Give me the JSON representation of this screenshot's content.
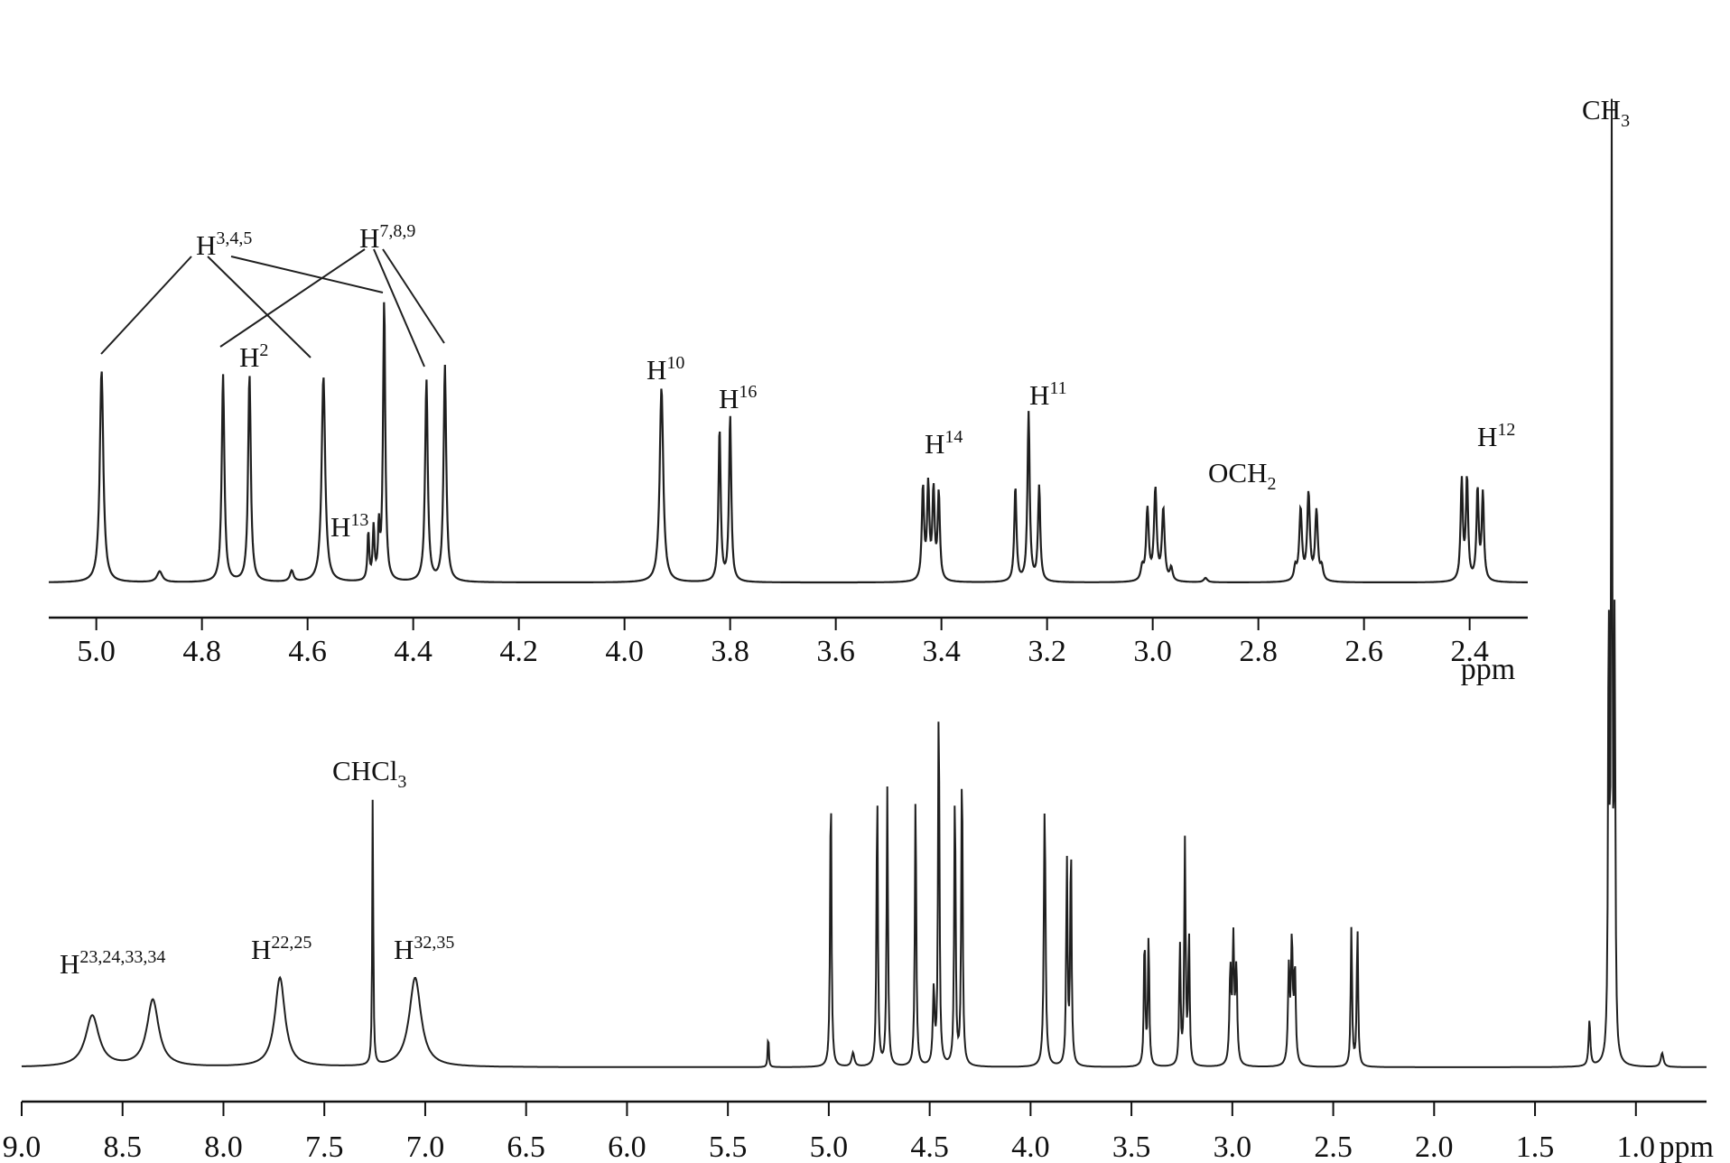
{
  "colors": {
    "trace": "#1f1f1f",
    "axis": "#111111",
    "background": "#ffffff"
  },
  "chart_data": [
    {
      "id": "inset",
      "type": "line",
      "x_unit": "ppm",
      "xlim": [
        5.09,
        2.29
      ],
      "ticks": [
        "5.0",
        "4.8",
        "4.6",
        "4.4",
        "4.2",
        "4.0",
        "3.8",
        "3.6",
        "3.4",
        "3.2",
        "3.0",
        "2.8",
        "2.6",
        "2.4"
      ],
      "xlabel": "ppm",
      "y_unit": "relative intensity",
      "ylim": [
        0,
        1
      ],
      "baseline": 0.02,
      "peaks": [
        {
          "x": 4.99,
          "h": 0.98,
          "w": 0.004
        },
        {
          "x": 4.88,
          "h": 0.05,
          "w": 0.006
        },
        {
          "x": 4.76,
          "h": 0.96,
          "w": 0.003
        },
        {
          "x": 4.71,
          "h": 0.96,
          "w": 0.003
        },
        {
          "x": 4.63,
          "h": 0.05,
          "w": 0.004
        },
        {
          "x": 4.57,
          "h": 0.95,
          "w": 0.004
        },
        {
          "x": 4.485,
          "h": 0.22,
          "w": 0.002
        },
        {
          "x": 4.475,
          "h": 0.24,
          "w": 0.002
        },
        {
          "x": 4.465,
          "h": 0.23,
          "w": 0.002
        },
        {
          "x": 4.455,
          "h": 1.3,
          "w": 0.0025
        },
        {
          "x": 4.375,
          "h": 0.93,
          "w": 0.003
        },
        {
          "x": 4.34,
          "h": 1.0,
          "w": 0.003
        },
        {
          "x": 3.93,
          "h": 0.9,
          "w": 0.004
        },
        {
          "x": 3.82,
          "h": 0.71,
          "w": 0.0025
        },
        {
          "x": 3.8,
          "h": 0.77,
          "w": 0.0025
        },
        {
          "x": 3.435,
          "h": 0.43,
          "w": 0.0025
        },
        {
          "x": 3.425,
          "h": 0.43,
          "w": 0.0025
        },
        {
          "x": 3.415,
          "h": 0.41,
          "w": 0.0025
        },
        {
          "x": 3.405,
          "h": 0.4,
          "w": 0.0025
        },
        {
          "x": 3.26,
          "h": 0.44,
          "w": 0.0025
        },
        {
          "x": 3.235,
          "h": 0.78,
          "w": 0.0025
        },
        {
          "x": 3.215,
          "h": 0.44,
          "w": 0.0025
        },
        {
          "x": 3.02,
          "h": 0.06,
          "w": 0.003
        },
        {
          "x": 3.01,
          "h": 0.33,
          "w": 0.003
        },
        {
          "x": 2.995,
          "h": 0.42,
          "w": 0.003
        },
        {
          "x": 2.98,
          "h": 0.33,
          "w": 0.003
        },
        {
          "x": 2.965,
          "h": 0.06,
          "w": 0.003
        },
        {
          "x": 2.9,
          "h": 0.02,
          "w": 0.004
        },
        {
          "x": 2.73,
          "h": 0.06,
          "w": 0.003
        },
        {
          "x": 2.72,
          "h": 0.33,
          "w": 0.003
        },
        {
          "x": 2.705,
          "h": 0.4,
          "w": 0.003
        },
        {
          "x": 2.69,
          "h": 0.32,
          "w": 0.003
        },
        {
          "x": 2.68,
          "h": 0.06,
          "w": 0.003
        },
        {
          "x": 2.415,
          "h": 0.46,
          "w": 0.0025
        },
        {
          "x": 2.405,
          "h": 0.47,
          "w": 0.0025
        },
        {
          "x": 2.385,
          "h": 0.42,
          "w": 0.0025
        },
        {
          "x": 2.375,
          "h": 0.4,
          "w": 0.0025
        }
      ],
      "annotations": [
        {
          "id": "h345",
          "label": "H",
          "sup": "3,4,5",
          "sub": ""
        },
        {
          "id": "h789",
          "label": "H",
          "sup": "7,8,9",
          "sub": ""
        },
        {
          "id": "h2",
          "label": "H",
          "sup": "2",
          "sub": ""
        },
        {
          "id": "h13",
          "label": "H",
          "sup": "13",
          "sub": ""
        },
        {
          "id": "h10",
          "label": "H",
          "sup": "10",
          "sub": ""
        },
        {
          "id": "h16",
          "label": "H",
          "sup": "16",
          "sub": ""
        },
        {
          "id": "h14",
          "label": "H",
          "sup": "14",
          "sub": ""
        },
        {
          "id": "h11",
          "label": "H",
          "sup": "11",
          "sub": ""
        },
        {
          "id": "och2",
          "label": "OCH",
          "sup": "",
          "sub": "2"
        },
        {
          "id": "h12",
          "label": "H",
          "sup": "12",
          "sub": ""
        }
      ]
    },
    {
      "id": "main",
      "type": "line",
      "x_unit": "ppm",
      "xlim": [
        9.0,
        0.65
      ],
      "ticks": [
        "9.0",
        "8.5",
        "8.0",
        "7.5",
        "7.0",
        "6.5",
        "6.0",
        "5.5",
        "5.0",
        "4.5",
        "4.0",
        "3.5",
        "3.0",
        "2.5",
        "2.0",
        "1.5",
        "1.0"
      ],
      "xlabel": "ppm",
      "y_unit": "relative intensity",
      "ylim": [
        0,
        1
      ],
      "baseline": 0.0,
      "peaks": [
        {
          "x": 8.65,
          "h": 0.055,
          "w": 0.04
        },
        {
          "x": 8.35,
          "h": 0.072,
          "w": 0.035
        },
        {
          "x": 7.72,
          "h": 0.096,
          "w": 0.03
        },
        {
          "x": 7.26,
          "h": 0.29,
          "w": 0.003
        },
        {
          "x": 7.05,
          "h": 0.096,
          "w": 0.035
        },
        {
          "x": 5.3,
          "h": 0.036,
          "w": 0.003
        },
        {
          "x": 4.99,
          "h": 0.31,
          "w": 0.004
        },
        {
          "x": 4.88,
          "h": 0.015,
          "w": 0.008
        },
        {
          "x": 4.76,
          "h": 0.3,
          "w": 0.004
        },
        {
          "x": 4.71,
          "h": 0.3,
          "w": 0.004
        },
        {
          "x": 4.57,
          "h": 0.3,
          "w": 0.004
        },
        {
          "x": 4.48,
          "h": 0.08,
          "w": 0.005
        },
        {
          "x": 4.455,
          "h": 0.4,
          "w": 0.004
        },
        {
          "x": 4.375,
          "h": 0.3,
          "w": 0.004
        },
        {
          "x": 4.34,
          "h": 0.33,
          "w": 0.004
        },
        {
          "x": 3.93,
          "h": 0.28,
          "w": 0.005
        },
        {
          "x": 3.82,
          "h": 0.22,
          "w": 0.004
        },
        {
          "x": 3.8,
          "h": 0.24,
          "w": 0.004
        },
        {
          "x": 3.435,
          "h": 0.14,
          "w": 0.004
        },
        {
          "x": 3.415,
          "h": 0.14,
          "w": 0.004
        },
        {
          "x": 3.26,
          "h": 0.13,
          "w": 0.004
        },
        {
          "x": 3.235,
          "h": 0.24,
          "w": 0.004
        },
        {
          "x": 3.215,
          "h": 0.14,
          "w": 0.004
        },
        {
          "x": 3.01,
          "h": 0.1,
          "w": 0.005
        },
        {
          "x": 2.995,
          "h": 0.13,
          "w": 0.005
        },
        {
          "x": 2.98,
          "h": 0.1,
          "w": 0.005
        },
        {
          "x": 2.72,
          "h": 0.1,
          "w": 0.005
        },
        {
          "x": 2.705,
          "h": 0.13,
          "w": 0.005
        },
        {
          "x": 2.69,
          "h": 0.1,
          "w": 0.005
        },
        {
          "x": 2.41,
          "h": 0.15,
          "w": 0.004
        },
        {
          "x": 2.38,
          "h": 0.15,
          "w": 0.004
        },
        {
          "x": 1.23,
          "h": 0.05,
          "w": 0.005
        },
        {
          "x": 1.135,
          "h": 0.49,
          "w": 0.0035
        },
        {
          "x": 1.12,
          "h": 1.0,
          "w": 0.0035
        },
        {
          "x": 1.105,
          "h": 0.46,
          "w": 0.0035
        },
        {
          "x": 0.87,
          "h": 0.015,
          "w": 0.008
        }
      ],
      "annotations": [
        {
          "id": "ch3",
          "label": "CH",
          "sup": "",
          "sub": "3"
        },
        {
          "id": "chcl3",
          "label": "CHCl",
          "sup": "",
          "sub": "3"
        },
        {
          "id": "h23",
          "label": "H",
          "sup": "23,24,33,34",
          "sub": ""
        },
        {
          "id": "h22",
          "label": "H",
          "sup": "22,25",
          "sub": ""
        },
        {
          "id": "h32",
          "label": "H",
          "sup": "32,35",
          "sub": ""
        }
      ]
    }
  ]
}
